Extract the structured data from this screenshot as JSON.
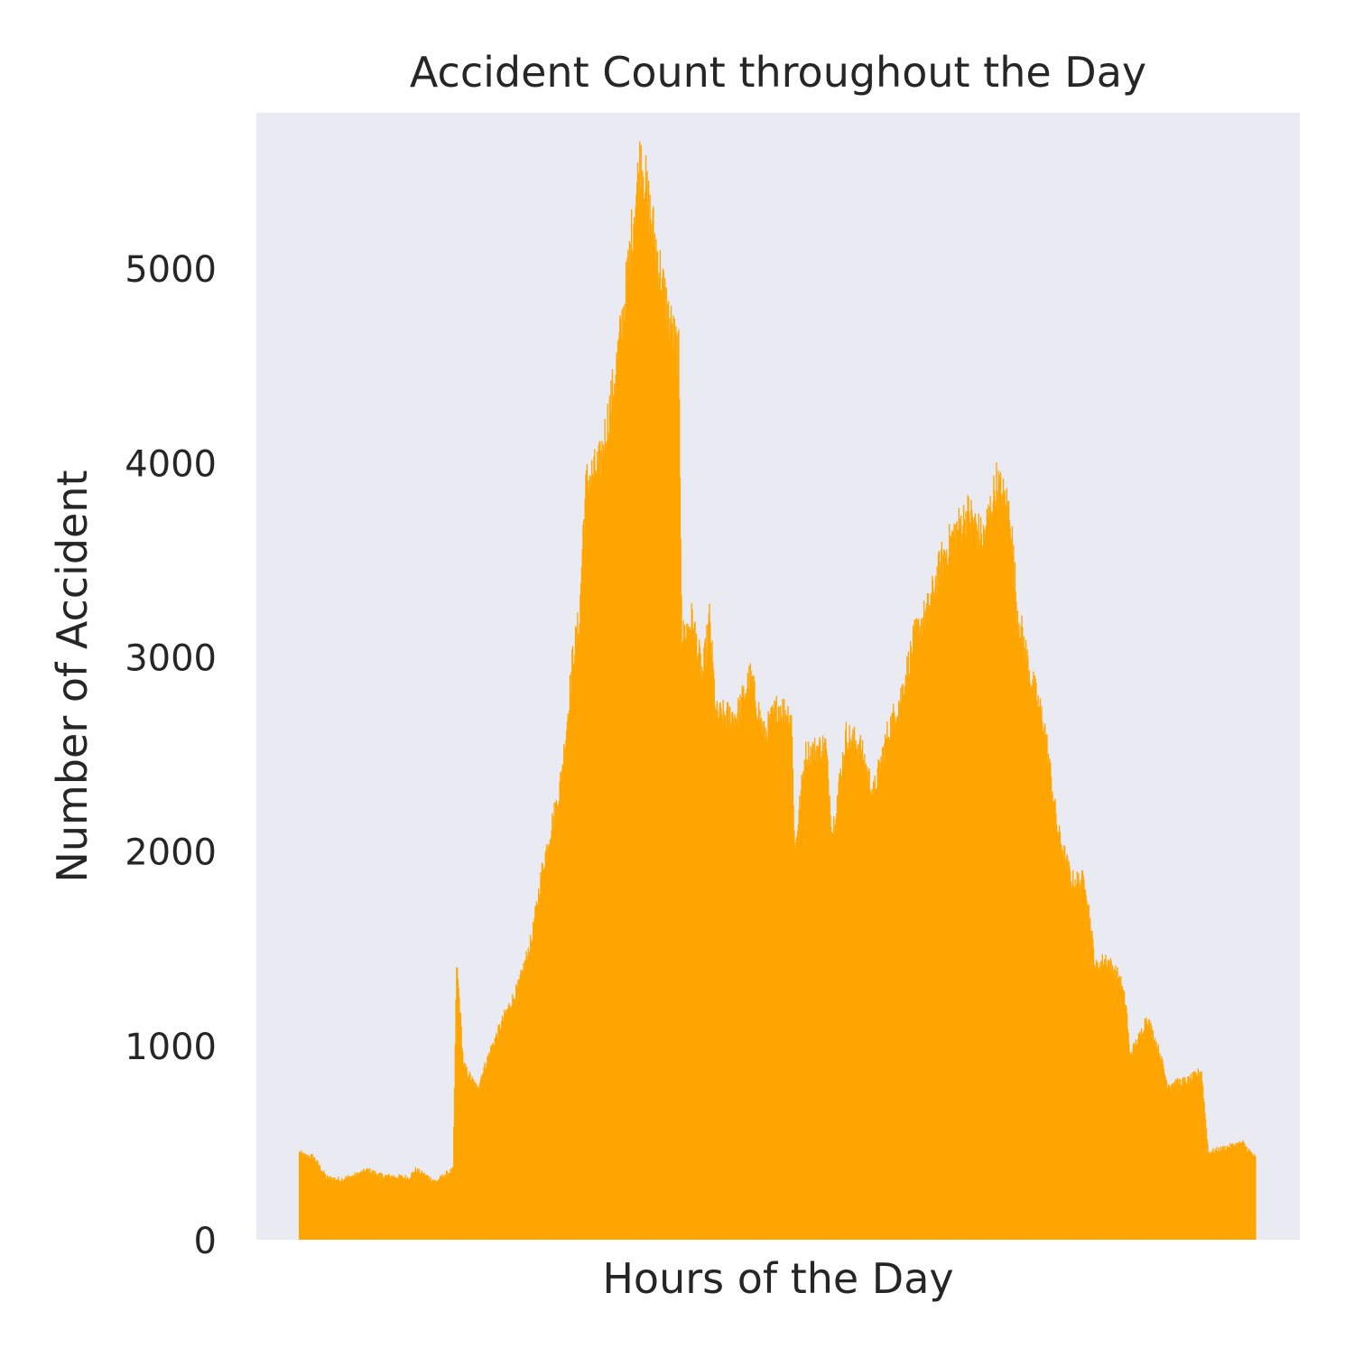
{
  "chart_data": {
    "type": "bar",
    "title": "Accident Count throughout the Day",
    "xlabel": "Hours of the Day",
    "ylabel": "Number of Accident",
    "ylim": [
      0,
      5800
    ],
    "yticks": [
      0,
      1000,
      2000,
      3000,
      4000,
      5000
    ],
    "xticks": [],
    "grid": false,
    "legend": "none",
    "colors": {
      "bar": "#FFA500",
      "plot_background": "#EAEAF2",
      "text": "#262626"
    },
    "keypoints": [
      [
        0,
        450
      ],
      [
        10,
        430
      ],
      [
        20,
        430
      ],
      [
        40,
        320
      ],
      [
        60,
        310
      ],
      [
        80,
        330
      ],
      [
        100,
        360
      ],
      [
        120,
        330
      ],
      [
        160,
        320
      ],
      [
        170,
        360
      ],
      [
        200,
        300
      ],
      [
        215,
        340
      ],
      [
        225,
        360
      ],
      [
        230,
        1420
      ],
      [
        235,
        1200
      ],
      [
        240,
        900
      ],
      [
        260,
        780
      ],
      [
        280,
        980
      ],
      [
        300,
        1150
      ],
      [
        320,
        1300
      ],
      [
        340,
        1550
      ],
      [
        355,
        1900
      ],
      [
        370,
        2150
      ],
      [
        380,
        2300
      ],
      [
        390,
        2600
      ],
      [
        400,
        3000
      ],
      [
        410,
        3200
      ],
      [
        415,
        3650
      ],
      [
        420,
        3900
      ],
      [
        440,
        4000
      ],
      [
        460,
        4400
      ],
      [
        475,
        4800
      ],
      [
        490,
        5300
      ],
      [
        500,
        5600
      ],
      [
        510,
        5350
      ],
      [
        520,
        5150
      ],
      [
        530,
        4950
      ],
      [
        540,
        4750
      ],
      [
        555,
        4550
      ],
      [
        560,
        3100
      ],
      [
        575,
        3200
      ],
      [
        590,
        2900
      ],
      [
        600,
        3200
      ],
      [
        610,
        2700
      ],
      [
        640,
        2700
      ],
      [
        660,
        2900
      ],
      [
        680,
        2600
      ],
      [
        700,
        2750
      ],
      [
        720,
        2700
      ],
      [
        725,
        2000
      ],
      [
        740,
        2500
      ],
      [
        770,
        2550
      ],
      [
        780,
        2100
      ],
      [
        800,
        2600
      ],
      [
        820,
        2550
      ],
      [
        840,
        2300
      ],
      [
        860,
        2600
      ],
      [
        880,
        2800
      ],
      [
        900,
        3100
      ],
      [
        920,
        3250
      ],
      [
        940,
        3500
      ],
      [
        960,
        3650
      ],
      [
        980,
        3750
      ],
      [
        1000,
        3600
      ],
      [
        1020,
        3900
      ],
      [
        1040,
        3750
      ],
      [
        1050,
        3250
      ],
      [
        1070,
        2900
      ],
      [
        1090,
        2650
      ],
      [
        1110,
        2100
      ],
      [
        1130,
        1850
      ],
      [
        1150,
        1850
      ],
      [
        1165,
        1400
      ],
      [
        1180,
        1450
      ],
      [
        1200,
        1350
      ],
      [
        1210,
        1200
      ],
      [
        1215,
        950
      ],
      [
        1230,
        1050
      ],
      [
        1240,
        1150
      ],
      [
        1260,
        950
      ],
      [
        1270,
        800
      ],
      [
        1300,
        820
      ],
      [
        1320,
        870
      ],
      [
        1330,
        450
      ],
      [
        1360,
        480
      ],
      [
        1380,
        500
      ],
      [
        1399,
        420
      ]
    ],
    "values": []
  }
}
